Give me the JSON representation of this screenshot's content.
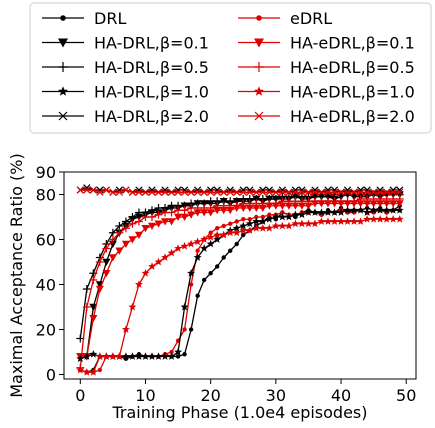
{
  "chart_data": {
    "type": "line",
    "title": "",
    "xlabel": "Training Phase (1.0e4 episodes)",
    "ylabel": "Maximal Acceptance Ratio (%)",
    "xlim": [
      -2.5,
      51.5
    ],
    "ylim": [
      -2,
      90
    ],
    "xticks": [
      0,
      10,
      20,
      30,
      40,
      50
    ],
    "yticks": [
      0,
      20,
      40,
      60,
      80,
      90
    ],
    "grid": false,
    "legend": {
      "placement": "top",
      "columns": 2
    },
    "x": [
      0,
      1,
      2,
      3,
      4,
      5,
      6,
      7,
      8,
      9,
      10,
      11,
      12,
      13,
      14,
      15,
      16,
      17,
      18,
      19,
      20,
      21,
      22,
      23,
      24,
      25,
      26,
      27,
      28,
      29,
      30,
      31,
      32,
      33,
      34,
      35,
      36,
      37,
      38,
      39,
      40,
      41,
      42,
      43,
      44,
      45,
      46,
      47,
      48,
      49
    ],
    "series": [
      {
        "name": "DRL",
        "color": "#000000",
        "marker": "dot",
        "values": [
          2,
          1,
          2,
          8,
          8,
          8,
          8,
          7,
          8,
          9,
          8,
          8,
          8,
          9,
          8,
          8,
          9,
          20,
          35,
          42,
          45,
          48,
          52,
          55,
          58,
          62,
          64,
          66,
          68,
          70,
          69,
          72,
          71,
          70,
          72,
          73,
          72,
          71,
          73,
          72,
          74,
          72,
          73,
          73,
          74,
          73,
          74,
          72,
          73,
          75
        ]
      },
      {
        "name": "eDRL",
        "color": "#e00000",
        "marker": "dot",
        "values": [
          2,
          1,
          1,
          2,
          8,
          8,
          8,
          8,
          8,
          8,
          8,
          8,
          8,
          9,
          10,
          15,
          20,
          40,
          55,
          60,
          63,
          65,
          66,
          67,
          68,
          69,
          69,
          70,
          70,
          71,
          71,
          72,
          71,
          71,
          72,
          72,
          72,
          71,
          72,
          72,
          73,
          72,
          72,
          73,
          72,
          72,
          73,
          72,
          73,
          73
        ]
      },
      {
        "name": "HA-DRL,β=0.1",
        "color": "#000000",
        "marker": "tri-down",
        "values": [
          8,
          8,
          30,
          40,
          50,
          58,
          63,
          66,
          69,
          70,
          71,
          72,
          72,
          73,
          74,
          74,
          75,
          75,
          76,
          76,
          76,
          76,
          77,
          76,
          77,
          77,
          77,
          78,
          77,
          78,
          78,
          78,
          78,
          79,
          78,
          78,
          79,
          79,
          79,
          78,
          79,
          80,
          79,
          79,
          79,
          80,
          79,
          80,
          80,
          80
        ]
      },
      {
        "name": "HA-eDRL,β=0.1",
        "color": "#e00000",
        "marker": "tri-down",
        "values": [
          8,
          8,
          25,
          38,
          45,
          52,
          55,
          58,
          60,
          62,
          65,
          66,
          67,
          68,
          68,
          70,
          70,
          71,
          72,
          72,
          72,
          73,
          73,
          73,
          74,
          74,
          74,
          74,
          74,
          75,
          75,
          75,
          75,
          75,
          75,
          75,
          76,
          76,
          76,
          76,
          76,
          76,
          76,
          76,
          76,
          76,
          76,
          76,
          76,
          76
        ]
      },
      {
        "name": "HA-DRL,β=0.5",
        "color": "#000000",
        "marker": "plus",
        "values": [
          16,
          38,
          45,
          52,
          58,
          63,
          66,
          68,
          70,
          72,
          72,
          73,
          74,
          74,
          75,
          75,
          75,
          76,
          76,
          76,
          77,
          77,
          77,
          77,
          77,
          78,
          78,
          78,
          78,
          78,
          78,
          79,
          79,
          79,
          79,
          79,
          79,
          79,
          79,
          80,
          80,
          80,
          80,
          80,
          80,
          80,
          80,
          80,
          80,
          80
        ]
      },
      {
        "name": "HA-eDRL,β=0.5",
        "color": "#e00000",
        "marker": "plus",
        "values": [
          3,
          30,
          42,
          50,
          56,
          60,
          63,
          65,
          67,
          68,
          70,
          70,
          71,
          72,
          72,
          73,
          73,
          74,
          74,
          74,
          74,
          75,
          75,
          75,
          75,
          76,
          76,
          76,
          76,
          76,
          76,
          77,
          77,
          77,
          77,
          77,
          77,
          77,
          77,
          77,
          77,
          77,
          77,
          78,
          78,
          78,
          78,
          78,
          78,
          78
        ]
      },
      {
        "name": "HA-DRL,β=1.0",
        "color": "#000000",
        "marker": "star",
        "values": [
          7,
          8,
          9,
          8,
          8,
          8,
          8,
          8,
          8,
          8,
          8,
          8,
          8,
          8,
          8,
          10,
          30,
          45,
          52,
          56,
          58,
          60,
          62,
          64,
          65,
          66,
          67,
          68,
          68,
          69,
          70,
          70,
          70,
          71,
          71,
          72,
          72,
          72,
          72,
          72,
          72,
          73,
          73,
          73,
          72,
          73,
          73,
          73,
          73,
          73
        ]
      },
      {
        "name": "HA-eDRL,β=1.0",
        "color": "#e00000",
        "marker": "star",
        "values": [
          2,
          1,
          1,
          8,
          8,
          8,
          8,
          20,
          30,
          40,
          45,
          48,
          50,
          52,
          54,
          56,
          57,
          58,
          59,
          60,
          61,
          62,
          62,
          63,
          63,
          64,
          64,
          65,
          65,
          65,
          66,
          66,
          66,
          67,
          67,
          67,
          67,
          68,
          68,
          68,
          68,
          68,
          68,
          68,
          69,
          69,
          69,
          69,
          69,
          69
        ]
      },
      {
        "name": "HA-DRL,β=2.0",
        "color": "#000000",
        "marker": "x",
        "values": [
          82,
          83,
          82,
          82,
          82,
          81,
          82,
          82,
          81,
          82,
          81,
          82,
          81,
          82,
          81,
          82,
          82,
          81,
          82,
          81,
          82,
          82,
          81,
          82,
          81,
          82,
          82,
          81,
          82,
          82,
          81,
          82,
          81,
          82,
          82,
          81,
          82,
          81,
          82,
          82,
          81,
          82,
          81,
          82,
          82,
          81,
          82,
          81,
          82,
          82
        ]
      },
      {
        "name": "HA-eDRL,β=2.0",
        "color": "#e00000",
        "marker": "x",
        "values": [
          82,
          82,
          82,
          81,
          82,
          81,
          81,
          82,
          81,
          81,
          81,
          81,
          81,
          81,
          81,
          81,
          81,
          81,
          81,
          81,
          81,
          81,
          81,
          81,
          81,
          81,
          81,
          81,
          81,
          81,
          81,
          81,
          81,
          81,
          81,
          81,
          81,
          81,
          81,
          81,
          81,
          81,
          81,
          81,
          81,
          81,
          81,
          81,
          81,
          81
        ]
      }
    ]
  }
}
